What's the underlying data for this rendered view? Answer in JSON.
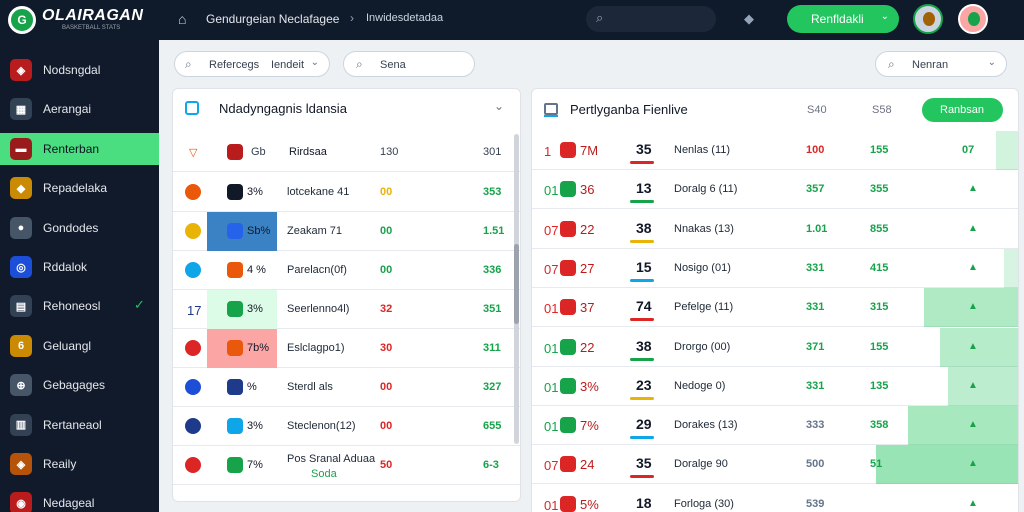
{
  "topbar": {
    "logo_letter": "G",
    "brand": "OLAIRAGAN",
    "brand_sub": "BASKETBALL STATS",
    "breadcrumb_1": "Gendurgeian Neclafagee",
    "breadcrumb_2": "Inwidesdetadaa",
    "search_icon": "search-icon",
    "cta_label": "Renfldakli",
    "cta_caret": "⌄"
  },
  "sidebar": {
    "items": [
      {
        "label": "Nodsngdal",
        "icon": "shield-icon",
        "color": "#b91c1c",
        "glyph": "◈"
      },
      {
        "label": "Aerangai",
        "icon": "dashboard-icon",
        "color": "#334155",
        "glyph": "▦"
      },
      {
        "label": "Renterban",
        "icon": "team-icon",
        "color": "#991b1b",
        "glyph": "▬",
        "active": true
      },
      {
        "label": "Repadelaka",
        "icon": "crest-icon",
        "color": "#ca8a04",
        "glyph": "◆"
      },
      {
        "label": "Gondodes",
        "icon": "ball-icon",
        "color": "#475569",
        "glyph": "●"
      },
      {
        "label": "Rddalok",
        "icon": "globe-icon",
        "color": "#1d4ed8",
        "glyph": "◎"
      },
      {
        "label": "Rehoneosl",
        "icon": "stadium-icon",
        "color": "#334155",
        "glyph": "▤",
        "check": true
      },
      {
        "label": "Geluangl",
        "icon": "trophy-icon",
        "color": "#ca8a04",
        "glyph": "6"
      },
      {
        "label": "Gebagages",
        "icon": "ball-icon",
        "color": "#475569",
        "glyph": "⊕"
      },
      {
        "label": "Rertaneaol",
        "icon": "calendar-icon",
        "color": "#334155",
        "glyph": "▥"
      },
      {
        "label": "Reaily",
        "icon": "shield-icon",
        "color": "#b45309",
        "glyph": "◈"
      },
      {
        "label": "Nedageal",
        "icon": "crest-icon",
        "color": "#b91c1c",
        "glyph": "◉"
      }
    ]
  },
  "filters": {
    "left_select": "Refercegs",
    "left_select_value": "Iendeit",
    "search_text": "Sena",
    "right_search": "Nenran"
  },
  "left_panel": {
    "title": "Ndadyngagnis ldansia",
    "header": {
      "c1": "Gb",
      "c2": "Rirdsaa",
      "c3": "130",
      "c4": "301"
    },
    "rows": [
      {
        "num": "",
        "code": "3%",
        "name": "lotcekane 41",
        "v1": "00",
        "v2": "353",
        "c1": "#ea580c",
        "c2": "#111827",
        "v1c": "#eab308"
      },
      {
        "num": "",
        "code": "Sb%",
        "name": "Zeakam 71",
        "v1": "00",
        "v2": "1.51",
        "c1": "#eab308",
        "c2": "#2563eb",
        "v1c": "#16a34a",
        "hl": "#3b82c4"
      },
      {
        "num": "",
        "code": "4 %",
        "name": "Parelacn(0f)",
        "v1": "00",
        "v2": "336",
        "c1": "#0ea5e9",
        "c2": "#ea580c",
        "v1c": "#16a34a"
      },
      {
        "num": "17",
        "code": "3%",
        "name": "Seerlenno4l)",
        "v1": "32",
        "v2": "351",
        "c1": "",
        "c2": "#16a34a",
        "v1c": "#dc2626",
        "hl": "#dcfce7"
      },
      {
        "num": "",
        "code": "7b%",
        "name": "Eslclagpo1)",
        "v1": "30",
        "v2": "311",
        "c1": "#dc2626",
        "c2": "#ea580c",
        "v1c": "#dc2626",
        "hl": "#fca5a5"
      },
      {
        "num": "",
        "code": "%",
        "name": "Sterdl als",
        "v1": "00",
        "v2": "327",
        "c1": "#1d4ed8",
        "c2": "#1e3a8a",
        "v1c": "#dc2626"
      },
      {
        "num": "",
        "code": "3%",
        "name": "Steclenon(12)",
        "v1": "00",
        "v2": "655",
        "c1": "#1e3a8a",
        "c2": "#0ea5e9",
        "v1c": "#dc2626"
      },
      {
        "num": "",
        "code": "7%",
        "name": "Pos Sranal Aduaa",
        "name2": "Soda",
        "v1": "50",
        "v2": "6-3",
        "c1": "#dc2626",
        "c2": "#16a34a",
        "v1c": "#dc2626"
      }
    ]
  },
  "right_panel": {
    "title": "Pertlyganba Fienlive",
    "header": {
      "c1": "S40",
      "c2": "S58",
      "button": "Ranbsan"
    },
    "rows": [
      {
        "rank": "1",
        "tag": "7M",
        "num": "35",
        "name": "Nenlas (11)",
        "v1": "100",
        "v2": "155",
        "v3": "07",
        "v1c": "#dc2626",
        "rc": "#dc2626",
        "heat": 0.15
      },
      {
        "rank": "01",
        "tag": "36",
        "num": "13",
        "name": "Doralg 6 (11)",
        "v1": "357",
        "v2": "355",
        "v3": "",
        "v1c": "#16a34a",
        "rc": "#16a34a",
        "heat": 0
      },
      {
        "rank": "07",
        "tag": "22",
        "num": "38",
        "name": "Nnakas (13)",
        "v1": "1.01",
        "v2": "855",
        "v3": "",
        "v1c": "#16a34a",
        "rc": "#dc2626",
        "heat": 0
      },
      {
        "rank": "07",
        "tag": "27",
        "num": "15",
        "name": "Nosigo (01)",
        "v1": "331",
        "v2": "415",
        "v3": "",
        "v1c": "#16a34a",
        "rc": "#dc2626",
        "heat": 0.1
      },
      {
        "rank": "01",
        "tag": "37",
        "num": "74",
        "name": "Pefelge (11)",
        "v1": "331",
        "v2": "315",
        "v3": "",
        "v1c": "#16a34a",
        "rc": "#dc2626",
        "heat": 0.6
      },
      {
        "rank": "01",
        "tag": "22",
        "num": "38",
        "name": "Drorgo (00)",
        "v1": "371",
        "v2": "155",
        "v3": "",
        "v1c": "#16a34a",
        "rc": "#16a34a",
        "heat": 0.5
      },
      {
        "rank": "01",
        "tag": "3%",
        "num": "23",
        "name": "Nedoge 0)",
        "v1": "331",
        "v2": "135",
        "v3": "",
        "v1c": "#16a34a",
        "rc": "#16a34a",
        "heat": 0.45
      },
      {
        "rank": "01",
        "tag": "7%",
        "num": "29",
        "name": "Dorakes (13)",
        "v1": "333",
        "v2": "358",
        "v3": "",
        "v1c": "#64748b",
        "rc": "#16a34a",
        "heat": 0.7
      },
      {
        "rank": "07",
        "tag": "24",
        "num": "35",
        "name": "Doralge 90",
        "v1": "500",
        "v2": "51",
        "v3": "",
        "v1c": "#64748b",
        "rc": "#dc2626",
        "heat": 0.9
      },
      {
        "rank": "01",
        "tag": "5%",
        "num": "18",
        "name": "Forloga (30)",
        "v1": "539",
        "v2": "",
        "v3": "",
        "v1c": "#64748b",
        "rc": "#dc2626",
        "heat": 0
      }
    ]
  }
}
